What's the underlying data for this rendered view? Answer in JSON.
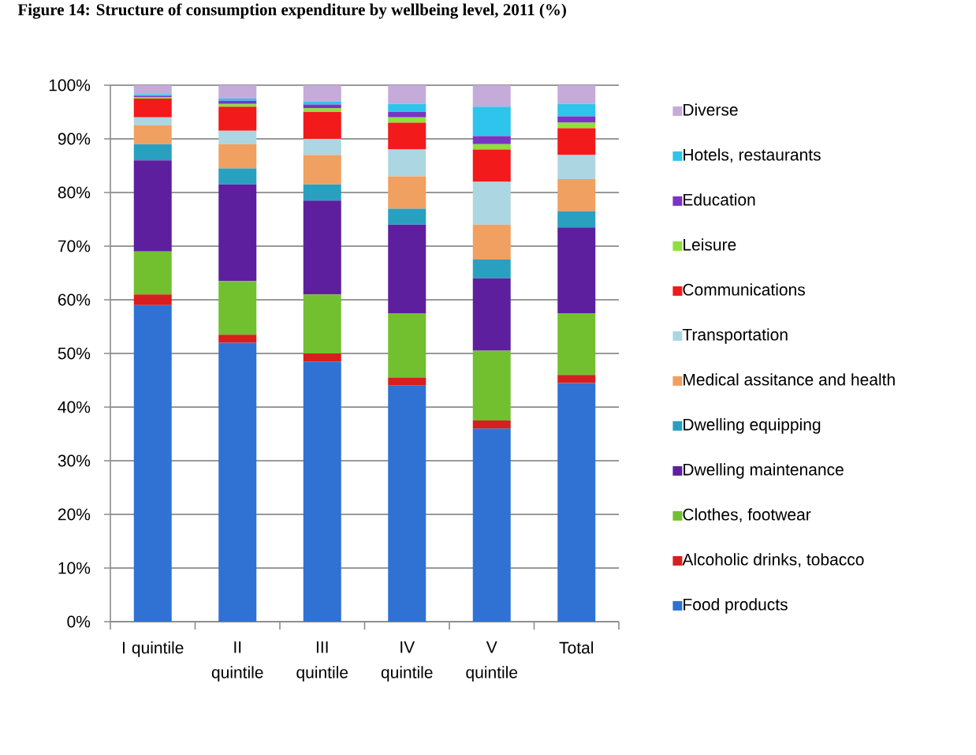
{
  "chart_data": {
    "type": "bar",
    "title": "Figure 14: Structure of consumption expenditure by wellbeing level, 2011 (%)",
    "categories": [
      "I quintile",
      "II quintile",
      "III quintile",
      "IV quintile",
      "V quintile",
      "Total"
    ],
    "stacked": true,
    "series": [
      {
        "name": "Food products",
        "color": "#2f72d4",
        "values": [
          59,
          52,
          48.5,
          44,
          36,
          44.5
        ]
      },
      {
        "name": "Alcoholic drinks, tobacco",
        "color": "#d81e1e",
        "values": [
          2,
          1.5,
          1.5,
          1.5,
          1.5,
          1.5
        ]
      },
      {
        "name": "Clothes, footwear",
        "color": "#72c030",
        "values": [
          8,
          10,
          11,
          12,
          13,
          11.5
        ]
      },
      {
        "name": "Dwelling maintenance",
        "color": "#5e1f9e",
        "values": [
          17,
          18,
          17.5,
          16.5,
          13.5,
          16
        ]
      },
      {
        "name": "Dwelling equipping",
        "color": "#2aa0c0",
        "values": [
          3,
          3,
          3,
          3,
          3.5,
          3
        ]
      },
      {
        "name": "Medical assitance and health",
        "color": "#f0a060",
        "values": [
          3.5,
          4.5,
          5.5,
          6,
          6.5,
          6
        ]
      },
      {
        "name": "Transportation",
        "color": "#acd6e2",
        "values": [
          1.5,
          2.5,
          3,
          5,
          8,
          4.5
        ]
      },
      {
        "name": "Communications",
        "color": "#f21a1a",
        "values": [
          3.5,
          4.5,
          5,
          5,
          6,
          5
        ]
      },
      {
        "name": "Leisure",
        "color": "#8ee03a",
        "values": [
          0.3,
          0.5,
          0.7,
          1,
          1,
          1
        ]
      },
      {
        "name": "Education",
        "color": "#7a34c4",
        "values": [
          0.2,
          0.6,
          0.7,
          1,
          1.5,
          1.2
        ]
      },
      {
        "name": "Hotels, restaurants",
        "color": "#2ec4ec",
        "values": [
          0.3,
          0.4,
          0.6,
          1.5,
          5.5,
          2.3
        ]
      },
      {
        "name": "Diverse",
        "color": "#c4abd9",
        "values": [
          1.7,
          2.5,
          3,
          3.5,
          4,
          3.5
        ]
      }
    ],
    "ylim": [
      0,
      100
    ],
    "yticks": [
      {
        "value": 0,
        "label": "0%"
      },
      {
        "value": 10,
        "label": "10%"
      },
      {
        "value": 20,
        "label": "20%"
      },
      {
        "value": 30,
        "label": "30%"
      },
      {
        "value": 40,
        "label": "40%"
      },
      {
        "value": 50,
        "label": "50%"
      },
      {
        "value": 60,
        "label": "60%"
      },
      {
        "value": 70,
        "label": "70%"
      },
      {
        "value": 80,
        "label": "80%"
      },
      {
        "value": 90,
        "label": "90%"
      },
      {
        "value": 100,
        "label": "100%"
      }
    ],
    "grid": "y",
    "legend": "right"
  }
}
